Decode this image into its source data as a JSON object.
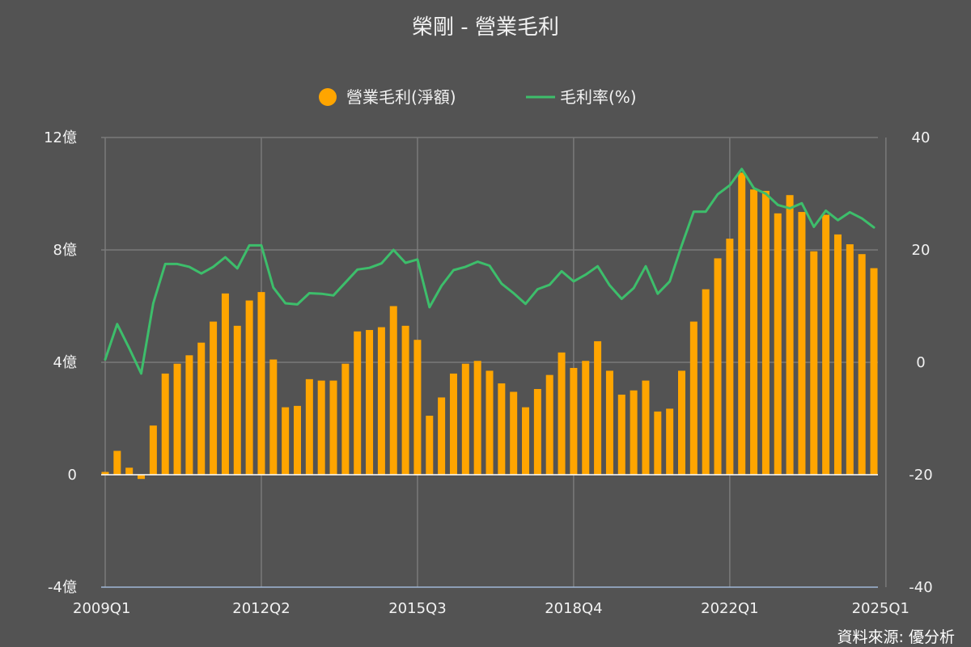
{
  "chart_data": {
    "type": "bar",
    "title": "榮剛 - 營業毛利",
    "source": "資料來源: 優分析",
    "legend": {
      "placement": "top-center",
      "bar_series_label": "營業毛利(淨額)",
      "line_series_label": "毛利率(%)"
    },
    "colors": {
      "background": "#535353",
      "bar": "#FFA500",
      "line": "#3DBE6B",
      "grid": "#7a7a7a",
      "zero_line": "#ffffff",
      "bottom_axis": "#9fb8d8"
    },
    "y_left": {
      "range": [
        -4,
        12
      ],
      "ticks": [
        -4,
        0,
        4,
        8,
        12
      ],
      "tick_labels": [
        "-4億",
        "0",
        "4億",
        "8億",
        "12億"
      ],
      "unit": "億"
    },
    "y_right": {
      "range": [
        -40,
        40
      ],
      "ticks": [
        -40,
        -20,
        0,
        20,
        40
      ],
      "tick_labels": [
        "-40",
        "-20",
        "0",
        "20",
        "40"
      ]
    },
    "x_axis": {
      "tick_labels": [
        "2009Q1",
        "2012Q2",
        "2015Q3",
        "2018Q4",
        "2022Q1",
        "2025Q1"
      ],
      "tick_quarter_index": [
        0,
        13,
        26,
        39,
        52,
        65
      ],
      "grid": true
    },
    "categories": [
      "2009Q1",
      "2009Q2",
      "2009Q3",
      "2009Q4",
      "2010Q1",
      "2010Q2",
      "2010Q3",
      "2010Q4",
      "2011Q1",
      "2011Q2",
      "2011Q3",
      "2011Q4",
      "2012Q1",
      "2012Q2",
      "2012Q3",
      "2012Q4",
      "2013Q1",
      "2013Q2",
      "2013Q3",
      "2013Q4",
      "2014Q1",
      "2014Q2",
      "2014Q3",
      "2014Q4",
      "2015Q1",
      "2015Q2",
      "2015Q3",
      "2015Q4",
      "2016Q1",
      "2016Q2",
      "2016Q3",
      "2016Q4",
      "2017Q1",
      "2017Q2",
      "2017Q3",
      "2017Q4",
      "2018Q1",
      "2018Q2",
      "2018Q3",
      "2018Q4",
      "2019Q1",
      "2019Q2",
      "2019Q3",
      "2019Q4",
      "2020Q1",
      "2020Q2",
      "2020Q3",
      "2020Q4",
      "2021Q1",
      "2021Q2",
      "2021Q3",
      "2021Q4",
      "2022Q1",
      "2022Q2",
      "2022Q3",
      "2022Q4",
      "2023Q1",
      "2023Q2",
      "2023Q3",
      "2023Q4",
      "2024Q1",
      "2024Q2",
      "2024Q3",
      "2024Q4",
      "2025Q1"
    ],
    "series": [
      {
        "name": "營業毛利(淨額)",
        "type": "bar",
        "axis": "left",
        "values": [
          0.1,
          0.85,
          0.25,
          -0.15,
          1.75,
          3.6,
          3.95,
          4.25,
          4.7,
          5.45,
          6.45,
          5.3,
          6.2,
          6.5,
          4.1,
          2.4,
          2.45,
          3.4,
          3.35,
          3.35,
          3.95,
          5.1,
          5.15,
          5.25,
          6.0,
          5.3,
          4.8,
          2.1,
          2.75,
          3.6,
          3.95,
          4.05,
          3.7,
          3.25,
          2.95,
          2.4,
          3.05,
          3.55,
          4.35,
          3.8,
          4.05,
          4.75,
          3.7,
          2.85,
          3.0,
          3.35,
          2.25,
          2.35,
          3.7,
          5.45,
          6.6,
          7.7,
          8.4,
          10.75,
          10.15,
          10.1,
          9.3,
          9.95,
          9.35,
          7.95,
          9.25,
          8.55,
          8.2,
          7.85,
          7.35
        ]
      },
      {
        "name": "毛利率(%)",
        "type": "line",
        "axis": "right",
        "values": [
          0.5,
          6.8,
          2.5,
          -2.0,
          10.5,
          17.5,
          17.5,
          17.0,
          15.8,
          17.0,
          18.7,
          16.7,
          20.8,
          20.8,
          13.3,
          10.5,
          10.3,
          12.3,
          12.2,
          11.9,
          14.2,
          16.5,
          16.8,
          17.6,
          20.0,
          17.7,
          18.3,
          9.8,
          13.6,
          16.4,
          17.0,
          17.9,
          17.2,
          14.0,
          12.3,
          10.4,
          13.0,
          13.8,
          16.2,
          14.4,
          15.6,
          17.1,
          13.7,
          11.3,
          13.2,
          17.1,
          12.2,
          14.4,
          20.8,
          26.8,
          26.8,
          29.9,
          31.5,
          34.4,
          31.0,
          30.0,
          28.0,
          27.4,
          28.3,
          24.1,
          27.0,
          25.3,
          26.7,
          25.6,
          24.0
        ]
      }
    ]
  }
}
